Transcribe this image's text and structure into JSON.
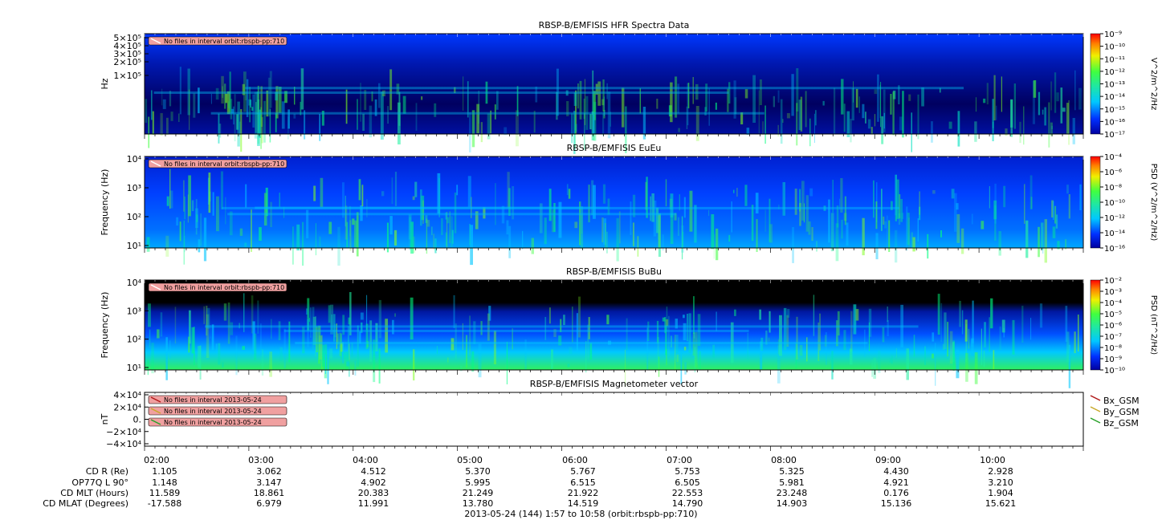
{
  "panels": [
    {
      "title": "RBSP-B/EMFISIS  HFR Spectra Data",
      "ylabel": "Hz",
      "yticks": [
        "5×10⁵",
        "4×10⁵",
        "3×10⁵",
        "2×10⁵",
        "1×10⁵"
      ],
      "cbar_label": "V^2/m^2/Hz",
      "cbar_ticks": [
        "10⁻⁹",
        "10⁻¹⁰",
        "10⁻¹¹",
        "10⁻¹²",
        "10⁻¹³",
        "10⁻¹⁴",
        "10⁻¹⁵",
        "10⁻¹⁶",
        "10⁻¹⁷"
      ],
      "no_files": [
        "No files in interval orbit:rbspb-pp:710"
      ]
    },
    {
      "title": "RBSP-B/EMFISIS  EuEu",
      "ylabel": "Frequency (Hz)",
      "yticks": [
        "10⁴",
        "10³",
        "10²",
        "10¹"
      ],
      "cbar_label": "PSD (V^2/m^2/Hz)",
      "cbar_ticks": [
        "10⁻⁴",
        "10⁻⁶",
        "10⁻⁸",
        "10⁻¹⁰",
        "10⁻¹²",
        "10⁻¹⁴",
        "10⁻¹⁶"
      ],
      "no_files": [
        "No files in interval orbit:rbspb-pp:710"
      ]
    },
    {
      "title": "RBSP-B/EMFISIS  BuBu",
      "ylabel": "Frequency (Hz)",
      "yticks": [
        "10⁴",
        "10³",
        "10²",
        "10¹"
      ],
      "cbar_label": "PSD (nT^2/Hz)",
      "cbar_ticks": [
        "10⁻²",
        "10⁻³",
        "10⁻⁴",
        "10⁻⁵",
        "10⁻⁶",
        "10⁻⁷",
        "10⁻⁸",
        "10⁻⁹",
        "10⁻¹⁰"
      ],
      "no_files": [
        "No files in interval orbit:rbspb-pp:710"
      ]
    },
    {
      "title": "RBSP-B/EMFISIS  Magnetometer vector",
      "ylabel": "nT",
      "yticks": [
        "4×10⁴",
        "2×10⁴",
        "0.",
        "−2×10⁴",
        "−4×10⁴"
      ],
      "no_files": [
        "No files in interval 2013-05-24",
        "No files in interval 2013-05-24",
        "No files in interval 2013-05-24"
      ],
      "legend": [
        "Bx_GSM",
        "By_GSM",
        "Bz_GSM"
      ]
    }
  ],
  "colors": {
    "bx": "#b01818",
    "by": "#c8a828",
    "bz": "#28a028",
    "spectrum_bg": "#0000a8",
    "no_data": "#000000",
    "badge": "#f0a0a0"
  },
  "chart_data": [
    {
      "type": "heatmap",
      "title": "RBSP-B/EMFISIS  HFR Spectra Data",
      "ylabel": "Hz",
      "yscale": "log",
      "zlabel": "V^2/m^2/Hz",
      "zscale": "log",
      "zlim": [
        1e-17,
        1e-09
      ]
    },
    {
      "type": "heatmap",
      "title": "RBSP-B/EMFISIS  EuEu",
      "ylabel": "Frequency (Hz)",
      "yscale": "log",
      "ylim": [
        10,
        10000
      ],
      "zlabel": "PSD (V^2/m^2/Hz)",
      "zscale": "log",
      "zlim": [
        1e-16,
        0.0001
      ]
    },
    {
      "type": "heatmap",
      "title": "RBSP-B/EMFISIS  BuBu",
      "ylabel": "Frequency (Hz)",
      "yscale": "log",
      "ylim": [
        10,
        10000
      ],
      "zlabel": "PSD (nT^2/Hz)",
      "zscale": "log",
      "zlim": [
        1e-10,
        0.01
      ]
    },
    {
      "type": "line",
      "title": "RBSP-B/EMFISIS  Magnetometer vector",
      "ylabel": "nT",
      "ylim": [
        -40000,
        40000
      ],
      "series": [
        {
          "name": "Bx_GSM",
          "values": []
        },
        {
          "name": "By_GSM",
          "values": []
        },
        {
          "name": "Bz_GSM",
          "values": []
        }
      ],
      "legend": "right"
    }
  ],
  "x_ticks": [
    "02:00",
    "03:00",
    "04:00",
    "05:00",
    "06:00",
    "07:00",
    "08:00",
    "09:00",
    "10:00"
  ],
  "ephemeris": {
    "labels": [
      "CD R (Re)",
      "OP77Q L 90°",
      "CD MLT (Hours)",
      "CD MLAT (Degrees)"
    ],
    "rows": [
      [
        "1.105",
        "3.062",
        "4.512",
        "5.370",
        "5.767",
        "5.753",
        "5.325",
        "4.430",
        "2.928"
      ],
      [
        "1.148",
        "3.147",
        "4.902",
        "5.995",
        "6.515",
        "6.505",
        "5.981",
        "4.921",
        "3.210"
      ],
      [
        "11.589",
        "18.861",
        "20.383",
        "21.249",
        "21.922",
        "22.553",
        "23.248",
        "0.176",
        "1.904"
      ],
      [
        "-17.588",
        "6.979",
        "11.991",
        "13.780",
        "14.519",
        "14.790",
        "14.903",
        "15.136",
        "15.621"
      ]
    ]
  },
  "footer": "2013-05-24 (144) 1:57 to 10:58 (orbit:rbspb-pp:710)"
}
